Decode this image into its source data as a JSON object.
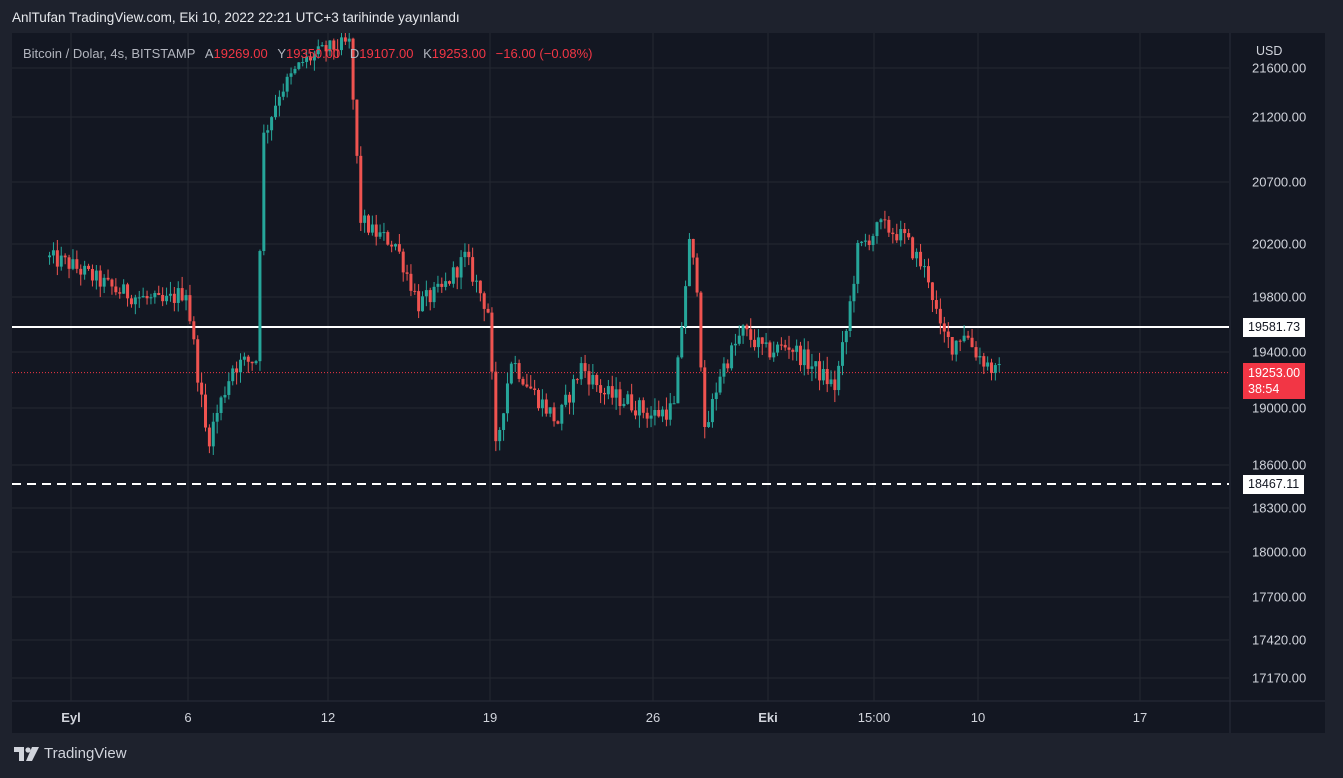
{
  "header": {
    "publisher_text": "AnlTufan TradingView.com, Eki 10, 2022 22:21 UTC+3 tarihinde yayınlandı"
  },
  "legend": {
    "symbol": "Bitcoin / Dolar, 4s, BITSTAMP",
    "open_label": "A",
    "open": "19269.00",
    "high_label": "Y",
    "high": "19350.00",
    "low_label": "D",
    "low": "19107.00",
    "close_label": "K",
    "close": "19253.00",
    "change": "−16.00 (−0.08%)"
  },
  "axis": {
    "currency": "USD"
  },
  "price_tags": {
    "resistance": "19581.73",
    "support": "18467.11",
    "last_price": "19253.00",
    "countdown": "38:54"
  },
  "footer": {
    "brand": "TradingView"
  },
  "colors": {
    "up": "#26a69a",
    "down": "#ef5350",
    "background": "#131722",
    "frame": "#1e222d",
    "grid": "#242832",
    "level_line": "#ffffff",
    "last_price": "#f23645"
  },
  "chart_data": {
    "type": "candlestick",
    "symbol": "Bitcoin / Dolar",
    "interval": "4s",
    "exchange": "BITSTAMP",
    "x_tick_labels": [
      "Eyl",
      "6",
      "12",
      "19",
      "26",
      "Eki",
      "15:00",
      "10",
      "17"
    ],
    "y_tick_labels": [
      "21600.00",
      "21200.00",
      "20700.00",
      "20200.00",
      "19800.00",
      "19400.00",
      "19000.00",
      "18600.00",
      "18300.00",
      "18000.00",
      "17700.00",
      "17420.00",
      "17170.00"
    ],
    "y_ticks": [
      21600,
      21200,
      20700,
      20200,
      19800,
      19400,
      19000,
      18600,
      18300,
      18000,
      17700,
      17420,
      17170
    ],
    "y_scale": "log",
    "ylim": [
      17000,
      21800
    ],
    "horizontal_levels": [
      {
        "value": 19581.73,
        "style": "solid",
        "color": "#ffffff"
      },
      {
        "value": 18467.11,
        "style": "dashed",
        "color": "#ffffff"
      }
    ],
    "last_price": 19253.0,
    "grid": true,
    "path_points": [
      {
        "date": "2022-08-31",
        "price": 20100
      },
      {
        "date": "2022-09-01",
        "price": 20050
      },
      {
        "date": "2022-09-02",
        "price": 19950
      },
      {
        "date": "2022-09-03",
        "price": 19850
      },
      {
        "date": "2022-09-04",
        "price": 19800
      },
      {
        "date": "2022-09-05",
        "price": 19750
      },
      {
        "date": "2022-09-06",
        "price": 19850
      },
      {
        "date": "2022-09-06T20:00",
        "price": 18850
      },
      {
        "date": "2022-09-07",
        "price": 18800
      },
      {
        "date": "2022-09-08",
        "price": 19300
      },
      {
        "date": "2022-09-09",
        "price": 19350
      },
      {
        "date": "2022-09-09T08:00",
        "price": 21050
      },
      {
        "date": "2022-09-10",
        "price": 21400
      },
      {
        "date": "2022-09-11",
        "price": 21650
      },
      {
        "date": "2022-09-12",
        "price": 21750
      },
      {
        "date": "2022-09-13",
        "price": 21800
      },
      {
        "date": "2022-09-13T12:00",
        "price": 20400
      },
      {
        "date": "2022-09-14",
        "price": 20300
      },
      {
        "date": "2022-09-15",
        "price": 20200
      },
      {
        "date": "2022-09-16",
        "price": 19750
      },
      {
        "date": "2022-09-17",
        "price": 19850
      },
      {
        "date": "2022-09-18",
        "price": 20100
      },
      {
        "date": "2022-09-19",
        "price": 19700
      },
      {
        "date": "2022-09-19T08:00",
        "price": 18700
      },
      {
        "date": "2022-09-20",
        "price": 19350
      },
      {
        "date": "2022-09-21",
        "price": 19100
      },
      {
        "date": "2022-09-22",
        "price": 18900
      },
      {
        "date": "2022-09-23",
        "price": 19300
      },
      {
        "date": "2022-09-24",
        "price": 19100
      },
      {
        "date": "2022-09-25",
        "price": 19050
      },
      {
        "date": "2022-09-26",
        "price": 18950
      },
      {
        "date": "2022-09-27",
        "price": 19000
      },
      {
        "date": "2022-09-27T16:00",
        "price": 20200
      },
      {
        "date": "2022-09-28",
        "price": 19900
      },
      {
        "date": "2022-09-28T08:00",
        "price": 18800
      },
      {
        "date": "2022-09-29",
        "price": 19250
      },
      {
        "date": "2022-09-30",
        "price": 19550
      },
      {
        "date": "2022-10-01",
        "price": 19400
      },
      {
        "date": "2022-10-02",
        "price": 19450
      },
      {
        "date": "2022-10-03",
        "price": 19300
      },
      {
        "date": "2022-10-04",
        "price": 19150
      },
      {
        "date": "2022-10-04T12:00",
        "price": 19550
      },
      {
        "date": "2022-10-05",
        "price": 20150
      },
      {
        "date": "2022-10-06",
        "price": 20350
      },
      {
        "date": "2022-10-07",
        "price": 20250
      },
      {
        "date": "2022-10-08",
        "price": 19950
      },
      {
        "date": "2022-10-08T12:00",
        "price": 19550
      },
      {
        "date": "2022-10-09",
        "price": 19450
      },
      {
        "date": "2022-10-09T12:00",
        "price": 19550
      },
      {
        "date": "2022-10-10",
        "price": 19400
      },
      {
        "date": "2022-10-10T20:00",
        "price": 19253
      }
    ]
  }
}
